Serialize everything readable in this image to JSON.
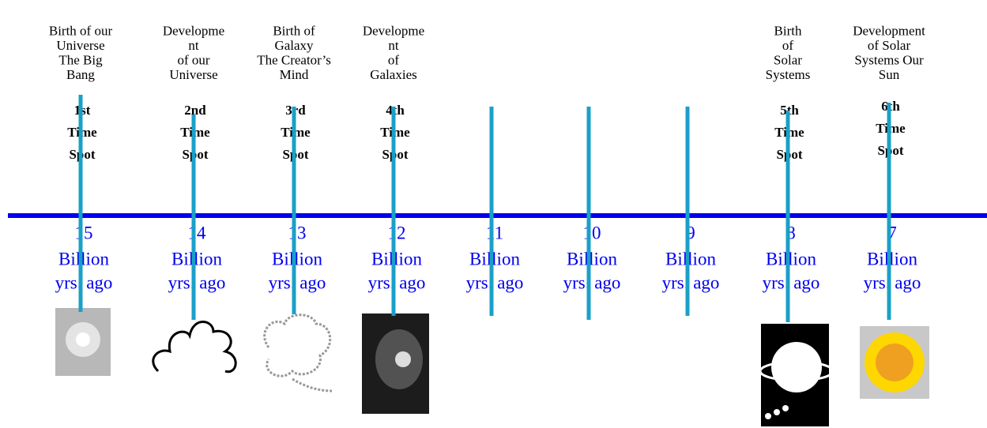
{
  "columns": [
    {
      "label": [
        "Birth of our",
        "Universe",
        "The Big",
        "Bang"
      ],
      "spot": [
        "1st",
        "Time",
        "Spot"
      ],
      "years": [
        "15",
        "Billion",
        "yrs. ago"
      ]
    },
    {
      "label": [
        "Developme",
        "nt",
        "of our",
        "Universe"
      ],
      "spot": [
        "2nd",
        "Time",
        "Spot"
      ],
      "years": [
        "14",
        "Billion",
        "yrs. ago"
      ]
    },
    {
      "label": [
        "Birth of",
        "Galaxy",
        "The Creator’s",
        "Mind"
      ],
      "spot": [
        "3rd",
        "Time",
        "Spot"
      ],
      "years": [
        "13",
        "Billion",
        "yrs. ago"
      ]
    },
    {
      "label": [
        "Developme",
        "nt",
        "of",
        "Galaxies"
      ],
      "spot": [
        "4th",
        "Time",
        "Spot"
      ],
      "years": [
        "12",
        "Billion",
        "yrs. ago"
      ]
    },
    {
      "years": [
        "11",
        "Billion",
        "yrs. ago"
      ]
    },
    {
      "years": [
        "10",
        "Billion",
        "yrs. ago"
      ]
    },
    {
      "years": [
        "9",
        "Billion",
        "yrs. ago"
      ]
    },
    {
      "label": [
        "Birth",
        "of",
        "Solar",
        "Systems"
      ],
      "spot": [
        "5th",
        "Time",
        "Spot"
      ],
      "years": [
        "8",
        "Billion",
        "yrs. ago"
      ]
    },
    {
      "label": [
        "Development",
        "of Solar",
        "Systems Our",
        "Sun"
      ],
      "spot": [
        "6th",
        "Time",
        "Spot"
      ],
      "years": [
        "7",
        "Billion",
        "yrs. ago"
      ]
    }
  ]
}
